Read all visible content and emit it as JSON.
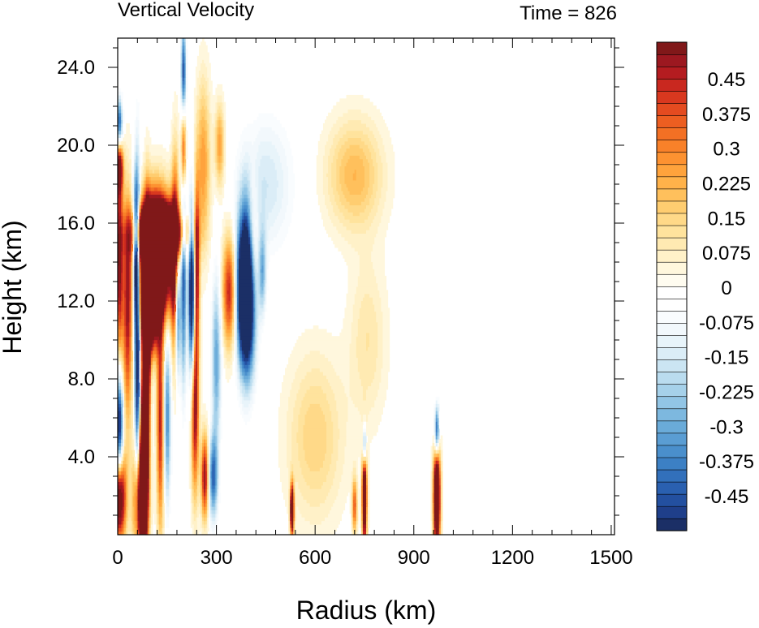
{
  "chart_data": {
    "type": "heatmap",
    "title": "Vertical Velocity",
    "time_label": "Time = 826",
    "xlabel": "Radius (km)",
    "ylabel": "Height (km)",
    "xlim": [
      0,
      1510
    ],
    "ylim": [
      0,
      25.5
    ],
    "x_ticks": [
      0,
      300,
      600,
      900,
      1200,
      1500
    ],
    "x_tick_labels": [
      "0",
      "300",
      "600",
      "900",
      "1200",
      "1500"
    ],
    "y_ticks": [
      4,
      8,
      12,
      16,
      20,
      24
    ],
    "y_tick_labels": [
      "4.0",
      "8.0",
      "12.0",
      "16.0",
      "20.0",
      "24.0"
    ],
    "colorbar": {
      "levels": [
        -0.5,
        -0.45,
        -0.425,
        -0.4,
        -0.375,
        -0.35,
        -0.325,
        -0.3,
        -0.275,
        -0.25,
        -0.225,
        -0.2,
        -0.175,
        -0.15,
        -0.125,
        -0.1,
        -0.075,
        -0.05,
        -0.025,
        0,
        0.025,
        0.05,
        0.075,
        0.1,
        0.125,
        0.15,
        0.175,
        0.2,
        0.225,
        0.25,
        0.275,
        0.3,
        0.325,
        0.35,
        0.375,
        0.4,
        0.425,
        0.45,
        0.5
      ],
      "colors": [
        "#1b2f66",
        "#1f3f8a",
        "#2350a0",
        "#2a60b0",
        "#3270bb",
        "#3c80c4",
        "#4a8fcc",
        "#5a9dd3",
        "#6aabd9",
        "#7db8df",
        "#92c5e5",
        "#a6d1ea",
        "#badcef",
        "#cbe5f3",
        "#dbedf7",
        "#e8f4fa",
        "#f2f8fc",
        "#f9fcfe",
        "#ffffff",
        "#ffffff",
        "#fffcf0",
        "#fff7dd",
        "#fff1c8",
        "#ffeab2",
        "#ffe39d",
        "#ffd988",
        "#ffcd70",
        "#ffc05c",
        "#ffb24a",
        "#ffa33c",
        "#fd9231",
        "#f98129",
        "#f37024",
        "#ec5e21",
        "#e44b20",
        "#d9381f",
        "#c9281f",
        "#b41c20",
        "#9c1820",
        "#801819"
      ],
      "tick_labels": [
        "0.45",
        "0.375",
        "0.3",
        "0.225",
        "0.15",
        "0.075",
        "0",
        "-0.075",
        "-0.15",
        "-0.225",
        "-0.3",
        "-0.375",
        "-0.45"
      ]
    },
    "features": [
      {
        "r": 70,
        "z": 1.8,
        "w": 0.8,
        "dr": 14,
        "dz": 2.2
      },
      {
        "r": 80,
        "z": 5.0,
        "w": 0.8,
        "dr": 8,
        "dz": 3.5
      },
      {
        "r": 90,
        "z": 10.0,
        "w": 0.8,
        "dr": 6,
        "dz": 4.0
      },
      {
        "r": 115,
        "z": 14.2,
        "w": 1.2,
        "dr": 35,
        "dz": 2.1
      },
      {
        "r": 125,
        "z": 15.5,
        "w": 1.0,
        "dr": 50,
        "dz": 0.9
      },
      {
        "r": 95,
        "z": 11.5,
        "w": 0.7,
        "dr": 18,
        "dz": 1.5
      },
      {
        "r": 5,
        "z": 2.0,
        "w": 0.7,
        "dr": 14,
        "dz": 1.6
      },
      {
        "r": 5,
        "z": 14.0,
        "w": 0.5,
        "dr": 8,
        "dz": 3.5
      },
      {
        "r": 5,
        "z": 19.0,
        "w": 0.5,
        "dr": 8,
        "dz": 1.0
      },
      {
        "r": 200,
        "z": 20.5,
        "w": 0.7,
        "dr": 5,
        "dz": 2.2
      },
      {
        "r": 200,
        "z": 23.0,
        "w": -0.7,
        "dr": 5,
        "dz": 2.0
      },
      {
        "r": 200,
        "z": 14.0,
        "w": -0.5,
        "dr": 6,
        "dz": 4.0
      },
      {
        "r": 225,
        "z": 12.5,
        "w": -0.7,
        "dr": 7,
        "dz": 3.0
      },
      {
        "r": 240,
        "z": 13.5,
        "w": 0.5,
        "dr": 6,
        "dz": 3.0
      },
      {
        "r": 175,
        "z": 14.0,
        "w": 0.55,
        "dr": 8,
        "dz": 3.5
      },
      {
        "r": 182,
        "z": 12.0,
        "w": -0.6,
        "dr": 6,
        "dz": 2.5
      },
      {
        "r": 60,
        "z": 9.0,
        "w": -0.6,
        "dr": 6,
        "dz": 6.0
      },
      {
        "r": 55,
        "z": 14.5,
        "w": -0.7,
        "dr": 7,
        "dz": 2.5
      },
      {
        "r": 5,
        "z": 5.5,
        "w": -0.6,
        "dr": 8,
        "dz": 2.0
      },
      {
        "r": 5,
        "z": 21.0,
        "w": -0.5,
        "dr": 7,
        "dz": 1.0
      },
      {
        "r": 395,
        "z": 12.5,
        "w": -0.8,
        "dr": 18,
        "dz": 2.8
      },
      {
        "r": 380,
        "z": 12.5,
        "w": -0.4,
        "dr": 18,
        "dz": 2.5
      },
      {
        "r": 340,
        "z": 12.5,
        "w": 0.45,
        "dr": 15,
        "dz": 2.0
      },
      {
        "r": 290,
        "z": 3.0,
        "w": -0.4,
        "dr": 10,
        "dz": 1.5
      },
      {
        "r": 265,
        "z": 3.0,
        "w": 0.5,
        "dr": 8,
        "dz": 1.5
      },
      {
        "r": 235,
        "z": 6.5,
        "w": 0.5,
        "dr": 8,
        "dz": 3.0
      },
      {
        "r": 30,
        "z": 11.5,
        "w": 0.45,
        "dr": 10,
        "dz": 4.0
      },
      {
        "r": 130,
        "z": 6.0,
        "w": 0.45,
        "dr": 8,
        "dz": 4.0
      },
      {
        "r": 150,
        "z": 6.0,
        "w": -0.35,
        "dr": 8,
        "dz": 3.0
      },
      {
        "r": 300,
        "z": 9.0,
        "w": -0.3,
        "dr": 10,
        "dz": 3.0
      },
      {
        "r": 410,
        "z": 14.5,
        "w": 0.3,
        "dr": 12,
        "dz": 2.5
      },
      {
        "r": 260,
        "z": 19.0,
        "w": 0.25,
        "dr": 15,
        "dz": 3.0
      },
      {
        "r": 310,
        "z": 20.0,
        "w": 0.25,
        "dr": 10,
        "dz": 1.5
      },
      {
        "r": 720,
        "z": 18.5,
        "w": 0.2,
        "dr": 60,
        "dz": 2.0
      },
      {
        "r": 450,
        "z": 18.0,
        "w": -0.15,
        "dr": 60,
        "dz": 2.5
      },
      {
        "r": 530,
        "z": 1.3,
        "w": 0.8,
        "dr": 4,
        "dz": 0.9
      },
      {
        "r": 750,
        "z": 2.0,
        "w": 0.8,
        "dr": 5,
        "dz": 1.8
      },
      {
        "r": 750,
        "z": 4.5,
        "w": -0.5,
        "dr": 4,
        "dz": 0.8
      },
      {
        "r": 970,
        "z": 2.0,
        "w": 0.9,
        "dr": 7,
        "dz": 2.0
      },
      {
        "r": 970,
        "z": 5.2,
        "w": -0.6,
        "dr": 5,
        "dz": 1.0
      },
      {
        "r": 720,
        "z": 1.5,
        "w": 0.35,
        "dr": 5,
        "dz": 1.0
      },
      {
        "r": 440,
        "z": 13.5,
        "w": -0.25,
        "dr": 8,
        "dz": 1.5
      },
      {
        "r": 600,
        "z": 5.0,
        "w": 0.15,
        "dr": 60,
        "dz": 3.0
      },
      {
        "r": 760,
        "z": 10.0,
        "w": 0.1,
        "dr": 40,
        "dz": 3.0
      }
    ]
  }
}
